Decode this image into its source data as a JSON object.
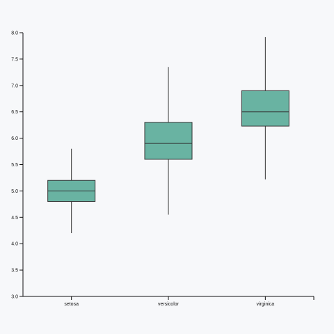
{
  "chart_data": {
    "type": "box",
    "title": "",
    "xlabel": "",
    "ylabel": "",
    "ylim": [
      3.0,
      8.0
    ],
    "y_ticks": [
      "3.0",
      "3.5",
      "4.0",
      "4.5",
      "5.0",
      "5.5",
      "6.0",
      "6.5",
      "7.0",
      "7.5",
      "8.0"
    ],
    "categories": [
      "setosa",
      "versicolor",
      "virginica"
    ],
    "boxes": [
      {
        "category": "setosa",
        "min": 4.2,
        "q1": 4.8,
        "median": 5.0,
        "q3": 5.2,
        "max": 5.8
      },
      {
        "category": "versicolor",
        "min": 4.55,
        "q1": 5.6,
        "median": 5.9,
        "q3": 6.3,
        "max": 7.35
      },
      {
        "category": "virginica",
        "min": 5.22,
        "q1": 6.23,
        "median": 6.5,
        "q3": 6.9,
        "max": 7.92
      }
    ],
    "box_fill": "#69b3a2",
    "box_stroke": "#333333",
    "grid": false,
    "legend": "none"
  }
}
